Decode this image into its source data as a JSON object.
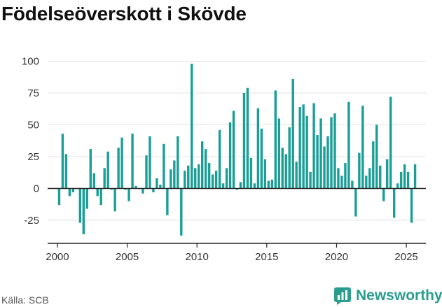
{
  "title": "Födelseöverskott i Skövde",
  "source": "Källa: SCB",
  "brand": "Newsworthy",
  "colors": {
    "bar": "#1a9e96",
    "axis": "#333333",
    "grid": "#e3e3e3",
    "brand": "#2a9d8f"
  },
  "chart_data": {
    "type": "bar",
    "title": "Födelseöverskott i Skövde",
    "xlabel": "",
    "ylabel": "",
    "x_ticks": [
      "2000",
      "2005",
      "2010",
      "2015",
      "2020",
      "2025"
    ],
    "y_ticks": [
      "100",
      "75",
      "50",
      "25",
      "0",
      "-25"
    ],
    "ylim": [
      -37,
      100
    ],
    "xlim": [
      1999.3,
      2026.4
    ],
    "grid": true,
    "period": "quarter",
    "start": 2000.125,
    "step": 0.25,
    "values": [
      -13,
      43,
      27,
      -6,
      -3,
      0,
      -27,
      -36,
      -16,
      31,
      12,
      -6,
      -13,
      16,
      29,
      -1,
      -18,
      32,
      40,
      -1,
      -10,
      43,
      2,
      0,
      -4,
      26,
      41,
      -3,
      8,
      3,
      35,
      -21,
      15,
      22,
      41,
      -37,
      14,
      18,
      98,
      16,
      19,
      37,
      31,
      20,
      11,
      14,
      46,
      4,
      16,
      52,
      61,
      -1,
      5,
      75,
      79,
      24,
      4,
      63,
      47,
      23,
      6,
      7,
      77,
      55,
      32,
      27,
      48,
      86,
      21,
      64,
      66,
      57,
      13,
      67,
      42,
      55,
      33,
      41,
      56,
      59,
      16,
      10,
      20,
      68,
      6,
      -22,
      28,
      65,
      10,
      16,
      37,
      50,
      18,
      -10,
      23,
      72,
      -23,
      4,
      13,
      19,
      13,
      -27,
      19
    ]
  }
}
